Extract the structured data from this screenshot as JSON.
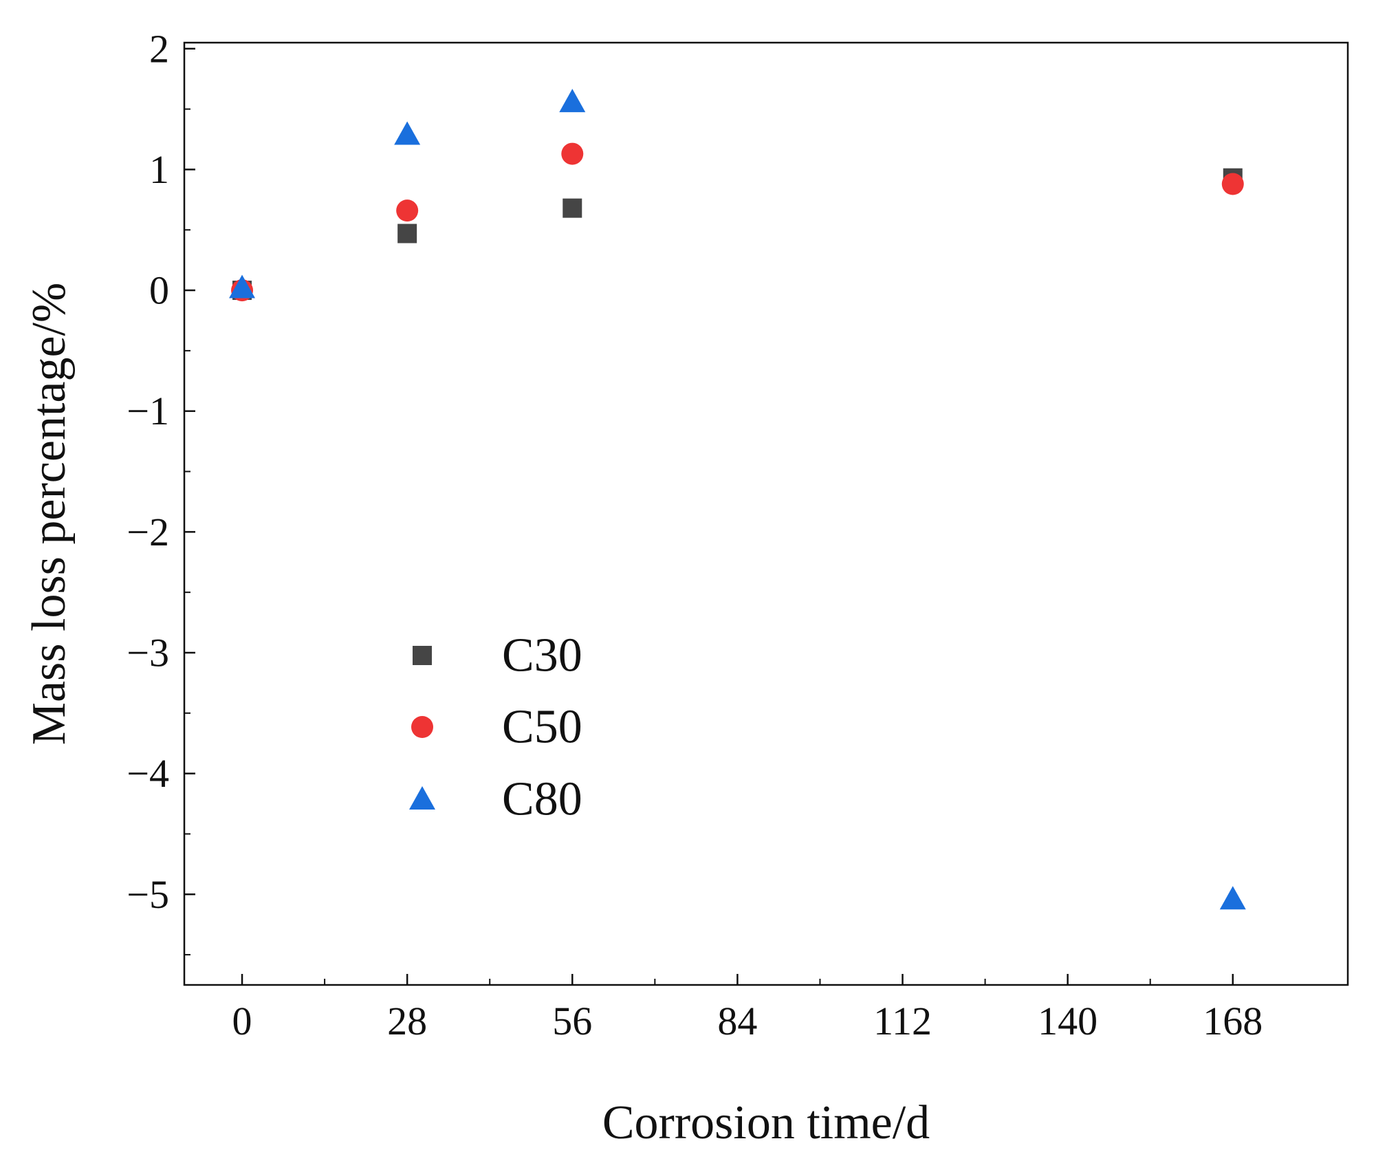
{
  "chart_data": {
    "type": "scatter",
    "title": "",
    "xlabel": "Corrosion time/d",
    "ylabel": "Mass loss percentage/%",
    "xlim": [
      -9.8,
      187.5
    ],
    "ylim": [
      -5.75,
      2.05
    ],
    "xticks": [
      0,
      28,
      56,
      84,
      112,
      140,
      168
    ],
    "xtick_labels": [
      "0",
      "28",
      "56",
      "84",
      "112",
      "140",
      "168"
    ],
    "yticks": [
      2,
      1,
      0,
      -1,
      -2,
      -3,
      -4,
      -5
    ],
    "ytick_labels": [
      "2",
      "1",
      "0",
      "−1",
      "−2",
      "−3",
      "−4",
      "−5"
    ],
    "grid": false,
    "legend_position": "lower-left",
    "series": [
      {
        "name": "C30",
        "marker": "square",
        "color": "#454545",
        "x": [
          0,
          28,
          56,
          168
        ],
        "y": [
          0.0,
          0.47,
          0.68,
          0.93
        ]
      },
      {
        "name": "C50",
        "marker": "circle",
        "color": "#ee3434",
        "x": [
          0,
          28,
          56,
          168
        ],
        "y": [
          0.0,
          0.66,
          1.13,
          0.88
        ]
      },
      {
        "name": "C80",
        "marker": "triangle",
        "color": "#1a6fdd",
        "x": [
          0,
          28,
          56,
          168
        ],
        "y": [
          0.02,
          1.29,
          1.56,
          -5.04
        ]
      }
    ]
  }
}
